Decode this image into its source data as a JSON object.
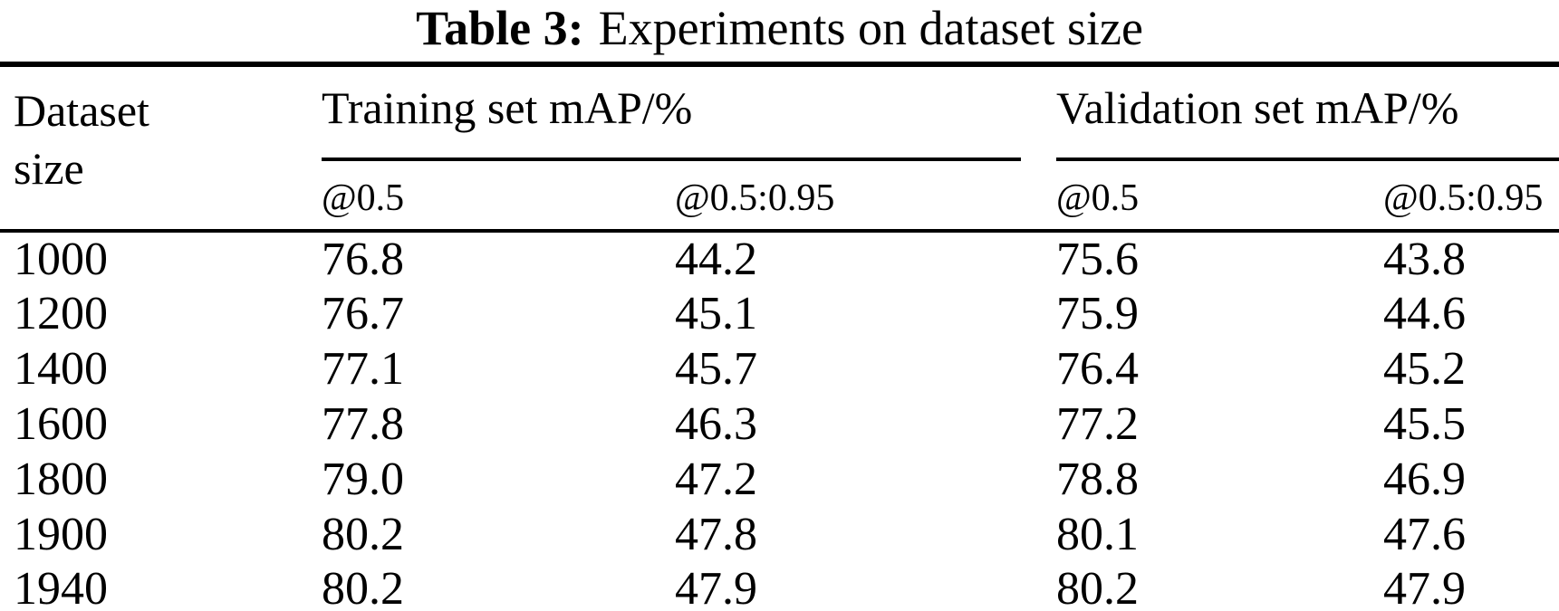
{
  "title": {
    "label": "Table 3:",
    "text": "Experiments on dataset size"
  },
  "table": {
    "dataset_header": "Dataset\nsize",
    "groups": [
      {
        "label": "Training set mAP/%",
        "subcols": [
          "@0.5",
          "@0.5:0.95"
        ]
      },
      {
        "label": "Validation set mAP/%",
        "subcols": [
          "@0.5",
          "@0.5:0.95"
        ]
      }
    ],
    "rows": [
      {
        "size": "1000",
        "train_05": "76.8",
        "train_0595": "44.2",
        "val_05": "75.6",
        "val_0595": "43.8"
      },
      {
        "size": "1200",
        "train_05": "76.7",
        "train_0595": "45.1",
        "val_05": "75.9",
        "val_0595": "44.6"
      },
      {
        "size": "1400",
        "train_05": "77.1",
        "train_0595": "45.7",
        "val_05": "76.4",
        "val_0595": "45.2"
      },
      {
        "size": "1600",
        "train_05": "77.8",
        "train_0595": "46.3",
        "val_05": "77.2",
        "val_0595": "45.5"
      },
      {
        "size": "1800",
        "train_05": "79.0",
        "train_0595": "47.2",
        "val_05": "78.8",
        "val_0595": "46.9"
      },
      {
        "size": "1900",
        "train_05": "80.2",
        "train_0595": "47.8",
        "val_05": "80.1",
        "val_0595": "47.6"
      },
      {
        "size": "1940",
        "train_05": "80.2",
        "train_0595": "47.9",
        "val_05": "80.2",
        "val_0595": "47.9"
      }
    ]
  },
  "chart_data": {
    "type": "table",
    "title": "Table 3: Experiments on dataset size",
    "categories": [
      1000,
      1200,
      1400,
      1600,
      1800,
      1900,
      1940
    ],
    "series": [
      {
        "name": "Training set mAP@0.5/%",
        "values": [
          76.8,
          76.7,
          77.1,
          77.8,
          79.0,
          80.2,
          80.2
        ]
      },
      {
        "name": "Training set mAP@0.5:0.95/%",
        "values": [
          44.2,
          45.1,
          45.7,
          46.3,
          47.2,
          47.8,
          47.9
        ]
      },
      {
        "name": "Validation set mAP@0.5/%",
        "values": [
          75.6,
          75.9,
          76.4,
          77.2,
          78.8,
          80.1,
          80.2
        ]
      },
      {
        "name": "Validation set mAP@0.5:0.95/%",
        "values": [
          43.8,
          44.6,
          45.2,
          45.5,
          46.9,
          47.6,
          47.9
        ]
      }
    ]
  }
}
